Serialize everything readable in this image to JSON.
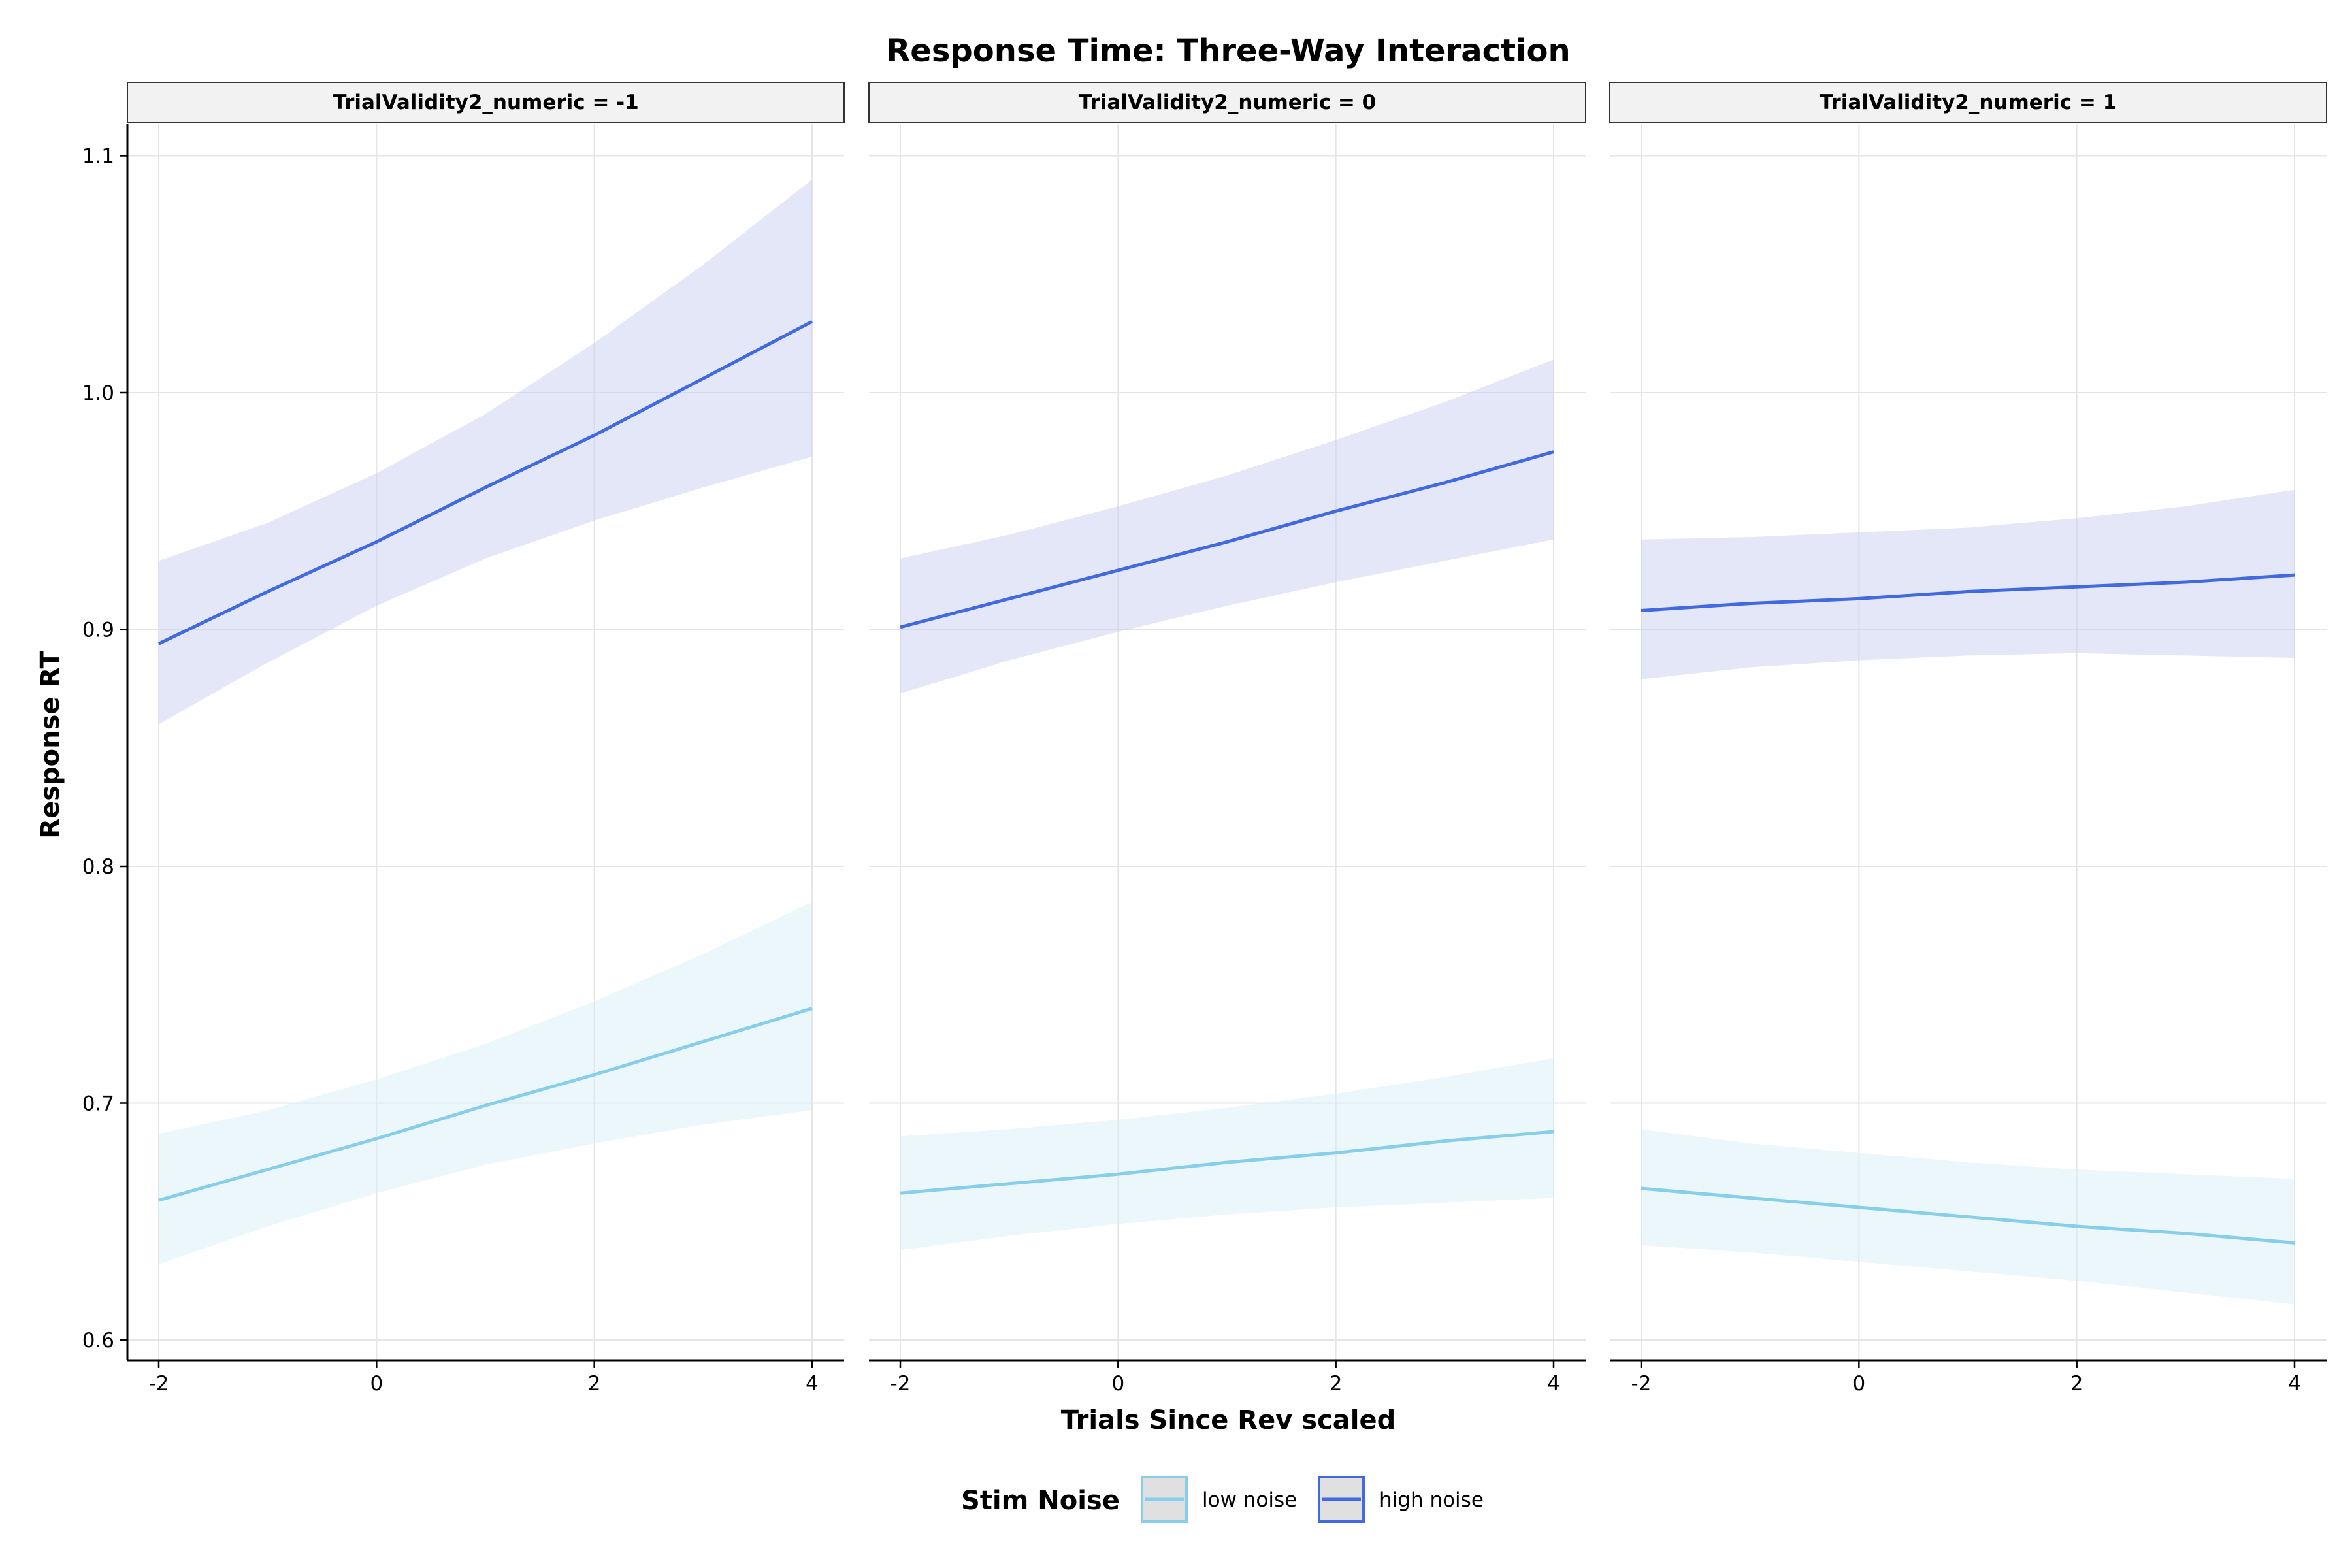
{
  "chart_data": {
    "type": "line",
    "title": "Response Time: Three-Way Interaction",
    "xlabel": "Trials Since Rev scaled",
    "ylabel": "Response RT",
    "xlim": [
      -2,
      4
    ],
    "ylim": [
      0.6,
      1.1
    ],
    "x_ticks": [
      -2,
      0,
      2,
      4
    ],
    "x_tick_labels": [
      "-2",
      "0",
      "2",
      "4"
    ],
    "y_ticks": [
      0.6,
      0.7,
      0.8,
      0.9,
      1.0,
      1.1
    ],
    "y_tick_labels": [
      "0.6",
      "0.7",
      "0.8",
      "0.9",
      "1.0",
      "1.1"
    ],
    "grid": true,
    "legend": {
      "title": "Stim Noise",
      "position": "bottom",
      "entries": [
        {
          "name": "low noise",
          "color": "#87CEEB"
        },
        {
          "name": "high noise",
          "color": "#4169E1"
        }
      ]
    },
    "panels": [
      {
        "label": "TrialValidity2_numeric = -1",
        "series": [
          {
            "name": "low noise",
            "color": "#87CEEB",
            "x": [
              -2,
              -1,
              0,
              1,
              2,
              3,
              4
            ],
            "y": [
              0.659,
              0.672,
              0.685,
              0.699,
              0.712,
              0.726,
              0.74
            ],
            "lower": [
              0.632,
              0.648,
              0.662,
              0.674,
              0.683,
              0.691,
              0.697
            ],
            "upper": [
              0.687,
              0.697,
              0.71,
              0.725,
              0.743,
              0.763,
              0.785
            ]
          },
          {
            "name": "high noise",
            "color": "#4169E1",
            "x": [
              -2,
              -1,
              0,
              1,
              2,
              3,
              4
            ],
            "y": [
              0.894,
              0.916,
              0.937,
              0.96,
              0.982,
              1.006,
              1.03
            ],
            "lower": [
              0.86,
              0.886,
              0.91,
              0.93,
              0.946,
              0.96,
              0.973
            ],
            "upper": [
              0.929,
              0.945,
              0.966,
              0.991,
              1.021,
              1.054,
              1.09
            ]
          }
        ]
      },
      {
        "label": "TrialValidity2_numeric = 0",
        "series": [
          {
            "name": "low noise",
            "color": "#87CEEB",
            "x": [
              -2,
              -1,
              0,
              1,
              2,
              3,
              4
            ],
            "y": [
              0.662,
              0.666,
              0.67,
              0.675,
              0.679,
              0.684,
              0.688
            ],
            "lower": [
              0.638,
              0.644,
              0.649,
              0.653,
              0.656,
              0.658,
              0.66
            ],
            "upper": [
              0.686,
              0.689,
              0.693,
              0.698,
              0.704,
              0.711,
              0.719
            ]
          },
          {
            "name": "high noise",
            "color": "#4169E1",
            "x": [
              -2,
              -1,
              0,
              1,
              2,
              3,
              4
            ],
            "y": [
              0.901,
              0.913,
              0.925,
              0.937,
              0.95,
              0.962,
              0.975
            ],
            "lower": [
              0.873,
              0.887,
              0.899,
              0.91,
              0.92,
              0.929,
              0.938
            ],
            "upper": [
              0.93,
              0.94,
              0.952,
              0.965,
              0.98,
              0.996,
              1.014
            ]
          }
        ]
      },
      {
        "label": "TrialValidity2_numeric = 1",
        "series": [
          {
            "name": "low noise",
            "color": "#87CEEB",
            "x": [
              -2,
              -1,
              0,
              1,
              2,
              3,
              4
            ],
            "y": [
              0.664,
              0.66,
              0.656,
              0.652,
              0.648,
              0.645,
              0.641
            ],
            "lower": [
              0.64,
              0.637,
              0.633,
              0.629,
              0.625,
              0.62,
              0.615
            ],
            "upper": [
              0.689,
              0.683,
              0.679,
              0.675,
              0.672,
              0.67,
              0.668
            ]
          },
          {
            "name": "high noise",
            "color": "#4169E1",
            "x": [
              -2,
              -1,
              0,
              1,
              2,
              3,
              4
            ],
            "y": [
              0.908,
              0.911,
              0.913,
              0.916,
              0.918,
              0.92,
              0.923
            ],
            "lower": [
              0.879,
              0.884,
              0.887,
              0.889,
              0.89,
              0.889,
              0.888
            ],
            "upper": [
              0.938,
              0.939,
              0.941,
              0.943,
              0.947,
              0.952,
              0.959
            ]
          }
        ]
      }
    ],
    "band_opacity": 0.18,
    "band_color_high": "#C7D0F2",
    "band_color_low": "#D4EEF8"
  }
}
